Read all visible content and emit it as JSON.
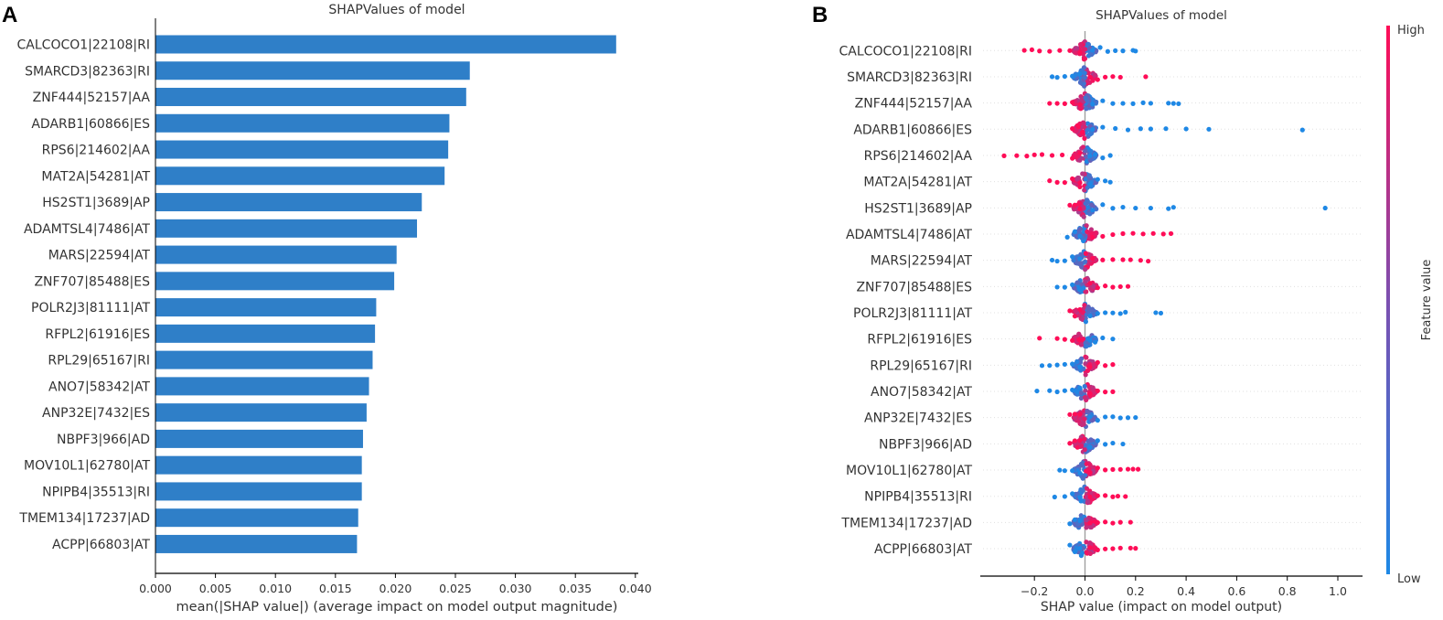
{
  "colors": {
    "bar": "#2f7fc8",
    "dot_low": "#1e88e5",
    "dot_high": "#ff0d57",
    "axis": "#000000",
    "text": "#333333",
    "zero_line": "#a0a0a0",
    "row_grid": "#e0e0e0"
  },
  "chart_data": [
    {
      "panel_label": "A",
      "type": "bar",
      "orientation": "horizontal",
      "title": "SHAPValues of model",
      "xlabel": "mean(|SHAP value|) (average impact on model output magnitude)",
      "ylabel": "",
      "xlim": [
        0,
        0.04
      ],
      "xticks": [
        0.0,
        0.005,
        0.01,
        0.015,
        0.02,
        0.025,
        0.03,
        0.035,
        0.04
      ],
      "xtick_labels": [
        "0.000",
        "0.005",
        "0.010",
        "0.015",
        "0.020",
        "0.025",
        "0.030",
        "0.035",
        "0.040"
      ],
      "categories": [
        "CALCOCO1|22108|RI",
        "SMARCD3|82363|RI",
        "ZNF444|52157|AA",
        "ADARB1|60866|ES",
        "RPS6|214602|AA",
        "MAT2A|54281|AT",
        "HS2ST1|3689|AP",
        "ADAMTSL4|7486|AT",
        "MARS|22594|AT",
        "ZNF707|85488|ES",
        "POLR2J3|81111|AT",
        "RFPL2|61916|ES",
        "RPL29|65167|RI",
        "ANO7|58342|AT",
        "ANP32E|7432|ES",
        "NBPF3|966|AD",
        "MOV10L1|62780|AT",
        "NPIPB4|35513|RI",
        "TMEM134|17237|AD",
        "ACPP|66803|AT"
      ],
      "values": [
        0.0384,
        0.0262,
        0.0259,
        0.0245,
        0.0244,
        0.0241,
        0.0222,
        0.0218,
        0.0201,
        0.0199,
        0.0184,
        0.0183,
        0.0181,
        0.0178,
        0.0176,
        0.0173,
        0.0172,
        0.0172,
        0.0169,
        0.0168
      ]
    },
    {
      "panel_label": "B",
      "type": "scatter",
      "subtype": "beeswarm",
      "title": "SHAPValues of model",
      "xlabel": "SHAP value (impact on model output)",
      "ylabel": "",
      "xlim": [
        -0.4,
        1.05
      ],
      "xticks": [
        -0.2,
        0.0,
        0.2,
        0.4,
        0.6,
        0.8,
        1.0
      ],
      "xtick_labels": [
        "−0.2",
        "0.0",
        "0.2",
        "0.4",
        "0.6",
        "0.8",
        "1.0"
      ],
      "categories": [
        "CALCOCO1|22108|RI",
        "SMARCD3|82363|RI",
        "ZNF444|52157|AA",
        "ADARB1|60866|ES",
        "RPS6|214602|AA",
        "MAT2A|54281|AT",
        "HS2ST1|3689|AP",
        "ADAMTSL4|7486|AT",
        "MARS|22594|AT",
        "ZNF707|85488|ES",
        "POLR2J3|81111|AT",
        "RFPL2|61916|ES",
        "RPL29|65167|RI",
        "ANO7|58342|AT",
        "ANP32E|7432|ES",
        "NBPF3|966|AD",
        "MOV10L1|62780|AT",
        "NPIPB4|35513|RI",
        "TMEM134|17237|AD",
        "ACPP|66803|AT"
      ],
      "colorbar": {
        "label": "Feature value",
        "high_label": "High",
        "low_label": "Low"
      },
      "features": [
        {
          "name": "CALCOCO1|22108|RI",
          "low_pos": [
            0.03,
            0.06,
            0.09,
            0.12,
            0.15,
            0.19,
            0.2
          ],
          "high_neg": [
            -0.02,
            -0.06,
            -0.1,
            -0.14,
            -0.18,
            -0.21,
            -0.24
          ]
        },
        {
          "name": "SMARCD3|82363|RI",
          "low_neg": [
            -0.02,
            -0.05,
            -0.08,
            -0.11,
            -0.13
          ],
          "high_pos": [
            0.02,
            0.05,
            0.08,
            0.11,
            0.14,
            0.24
          ]
        },
        {
          "name": "ZNF444|52157|AA",
          "low_pos": [
            0.03,
            0.07,
            0.11,
            0.15,
            0.19,
            0.23,
            0.26,
            0.33,
            0.35,
            0.37
          ],
          "high_neg": [
            -0.02,
            -0.05,
            -0.08,
            -0.11,
            -0.14
          ]
        },
        {
          "name": "ADARB1|60866|ES",
          "low_pos": [
            0.03,
            0.07,
            0.12,
            0.17,
            0.22,
            0.26,
            0.32,
            0.4,
            0.49,
            0.86
          ],
          "high_neg": [
            -0.01,
            -0.03,
            -0.05
          ]
        },
        {
          "name": "RPS6|214602|AA",
          "low_pos": [
            0.02,
            0.04,
            0.07,
            0.1
          ],
          "high_neg": [
            -0.02,
            -0.05,
            -0.09,
            -0.13,
            -0.17,
            -0.2,
            -0.23,
            -0.27,
            -0.32
          ]
        },
        {
          "name": "MAT2A|54281|AT",
          "low_pos": [
            0.02,
            0.05,
            0.08,
            0.1
          ],
          "high_neg": [
            -0.02,
            -0.05,
            -0.08,
            -0.11,
            -0.14
          ]
        },
        {
          "name": "HS2ST1|3689|AP",
          "low_pos": [
            0.03,
            0.07,
            0.11,
            0.15,
            0.2,
            0.26,
            0.33,
            0.35,
            0.95
          ],
          "high_neg": [
            -0.02,
            -0.04,
            -0.06
          ]
        },
        {
          "name": "ADAMTSL4|7486|AT",
          "low_neg": [
            -0.02,
            -0.04,
            -0.07
          ],
          "high_pos": [
            0.03,
            0.07,
            0.11,
            0.15,
            0.19,
            0.23,
            0.27,
            0.31,
            0.34
          ]
        },
        {
          "name": "MARS|22594|AT",
          "low_neg": [
            -0.02,
            -0.05,
            -0.08,
            -0.11,
            -0.13
          ],
          "high_pos": [
            0.03,
            0.07,
            0.11,
            0.15,
            0.18,
            0.22,
            0.25
          ]
        },
        {
          "name": "ZNF707|85488|ES",
          "low_neg": [
            -0.02,
            -0.05,
            -0.08,
            -0.11
          ],
          "high_pos": [
            0.02,
            0.05,
            0.08,
            0.11,
            0.14,
            0.17
          ]
        },
        {
          "name": "POLR2J3|81111|AT",
          "low_pos": [
            0.02,
            0.05,
            0.08,
            0.11,
            0.14,
            0.16,
            0.28,
            0.3
          ],
          "high_neg": [
            -0.02,
            -0.04,
            -0.06
          ]
        },
        {
          "name": "RFPL2|61916|ES",
          "low_pos": [
            0.02,
            0.04,
            0.07,
            0.11
          ],
          "high_neg": [
            -0.02,
            -0.05,
            -0.08,
            -0.11,
            -0.18
          ]
        },
        {
          "name": "RPL29|65167|RI",
          "low_neg": [
            -0.02,
            -0.05,
            -0.08,
            -0.11,
            -0.14,
            -0.17
          ],
          "high_pos": [
            0.02,
            0.05,
            0.08,
            0.11
          ]
        },
        {
          "name": "ANO7|58342|AT",
          "low_neg": [
            -0.02,
            -0.05,
            -0.08,
            -0.11,
            -0.14,
            -0.19
          ],
          "high_pos": [
            0.02,
            0.05,
            0.08,
            0.11
          ]
        },
        {
          "name": "ANP32E|7432|ES",
          "low_pos": [
            0.02,
            0.05,
            0.08,
            0.11,
            0.14,
            0.17,
            0.2
          ],
          "high_neg": [
            -0.02,
            -0.04,
            -0.06
          ]
        },
        {
          "name": "NBPF3|966|AD",
          "low_pos": [
            0.02,
            0.05,
            0.08,
            0.11,
            0.15
          ],
          "high_neg": [
            -0.02,
            -0.04,
            -0.06
          ]
        },
        {
          "name": "MOV10L1|62780|AT",
          "low_neg": [
            -0.02,
            -0.05,
            -0.08,
            -0.1
          ],
          "high_pos": [
            0.02,
            0.05,
            0.08,
            0.11,
            0.14,
            0.17,
            0.19,
            0.21
          ]
        },
        {
          "name": "NPIPB4|35513|RI",
          "low_neg": [
            -0.02,
            -0.05,
            -0.08,
            -0.12
          ],
          "high_pos": [
            0.02,
            0.05,
            0.08,
            0.11,
            0.13,
            0.16
          ]
        },
        {
          "name": "TMEM134|17237|AD",
          "low_neg": [
            -0.02,
            -0.04,
            -0.06
          ],
          "high_pos": [
            0.02,
            0.05,
            0.08,
            0.11,
            0.14,
            0.18
          ]
        },
        {
          "name": "ACPP|66803|AT",
          "low_neg": [
            -0.02,
            -0.04,
            -0.06
          ],
          "high_pos": [
            0.02,
            0.05,
            0.08,
            0.11,
            0.14,
            0.18,
            0.2
          ]
        }
      ]
    }
  ]
}
